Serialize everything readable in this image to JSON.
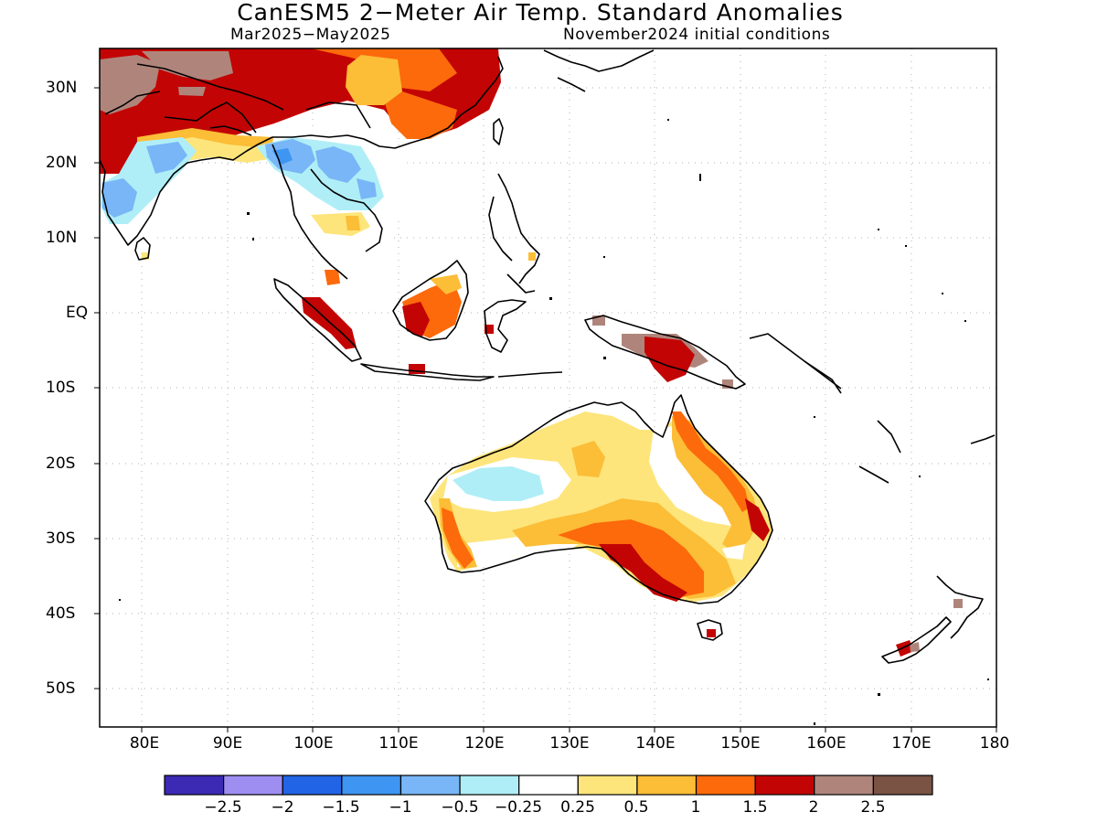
{
  "title": "CanESM5 2−Meter Air Temp. Standard Anomalies",
  "subtitle_left": "Mar2025−May2025",
  "subtitle_right": "November2024 initial conditions",
  "lat_labels": [
    "30N",
    "20N",
    "10N",
    "EQ",
    "10S",
    "20S",
    "30S",
    "40S",
    "50S"
  ],
  "lon_labels": [
    "80E",
    "90E",
    "100E",
    "110E",
    "120E",
    "130E",
    "140E",
    "150E",
    "160E",
    "170E",
    "180"
  ],
  "colorbar": {
    "colors": [
      "#3c29b4",
      "#9e8ef2",
      "#2165e6",
      "#3e95f2",
      "#78b6f7",
      "#b0eef7",
      "#ffffff",
      "#fde57b",
      "#fcbd37",
      "#fc6a0b",
      "#c30404",
      "#af857b",
      "#7a5345"
    ],
    "labels": [
      "−2.5",
      "−2",
      "−1.5",
      "−1",
      "−0.5",
      "−0.25",
      "0.25",
      "0.5",
      "1",
      "1.5",
      "2",
      "2.5"
    ]
  }
}
